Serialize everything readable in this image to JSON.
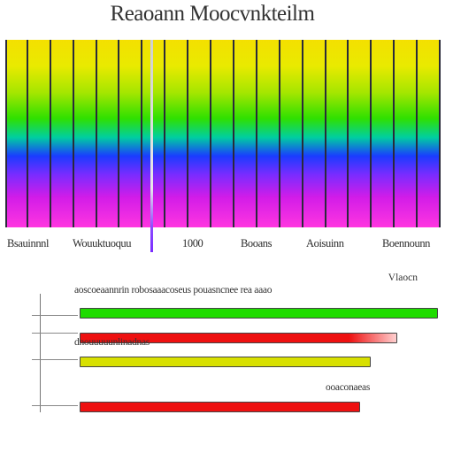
{
  "chart_data": [
    {
      "type": "heatmap",
      "title": "Reaoann Moocvnkteilm",
      "bands": 19,
      "colormap": [
        "#f4e000",
        "#a6e600",
        "#2fe000",
        "#00cfa0",
        "#1a3cff",
        "#7a2cff",
        "#d21ce8",
        "#ff36e0"
      ],
      "tick_labels": [
        "Bsauinnnl",
        "Wouuktuoquu",
        "1000",
        "Booans",
        "Aoisuinn",
        "Boennounn"
      ]
    },
    {
      "type": "bar",
      "orientation": "horizontal",
      "header": "aoscoeaannrin robosaaacoseus pouasncnee rea aaao",
      "legend_label": "Vlaocn",
      "categories": [
        "",
        "",
        "",
        ""
      ],
      "values": [
        0.96,
        0.85,
        0.78,
        0.75
      ],
      "colors": [
        "#1fdc00",
        "#ee1010",
        "#d8e000",
        "#ee1010"
      ],
      "notes": [
        "",
        "",
        "dnouuuuunlinadnas",
        "ooaconaeas"
      ]
    }
  ]
}
